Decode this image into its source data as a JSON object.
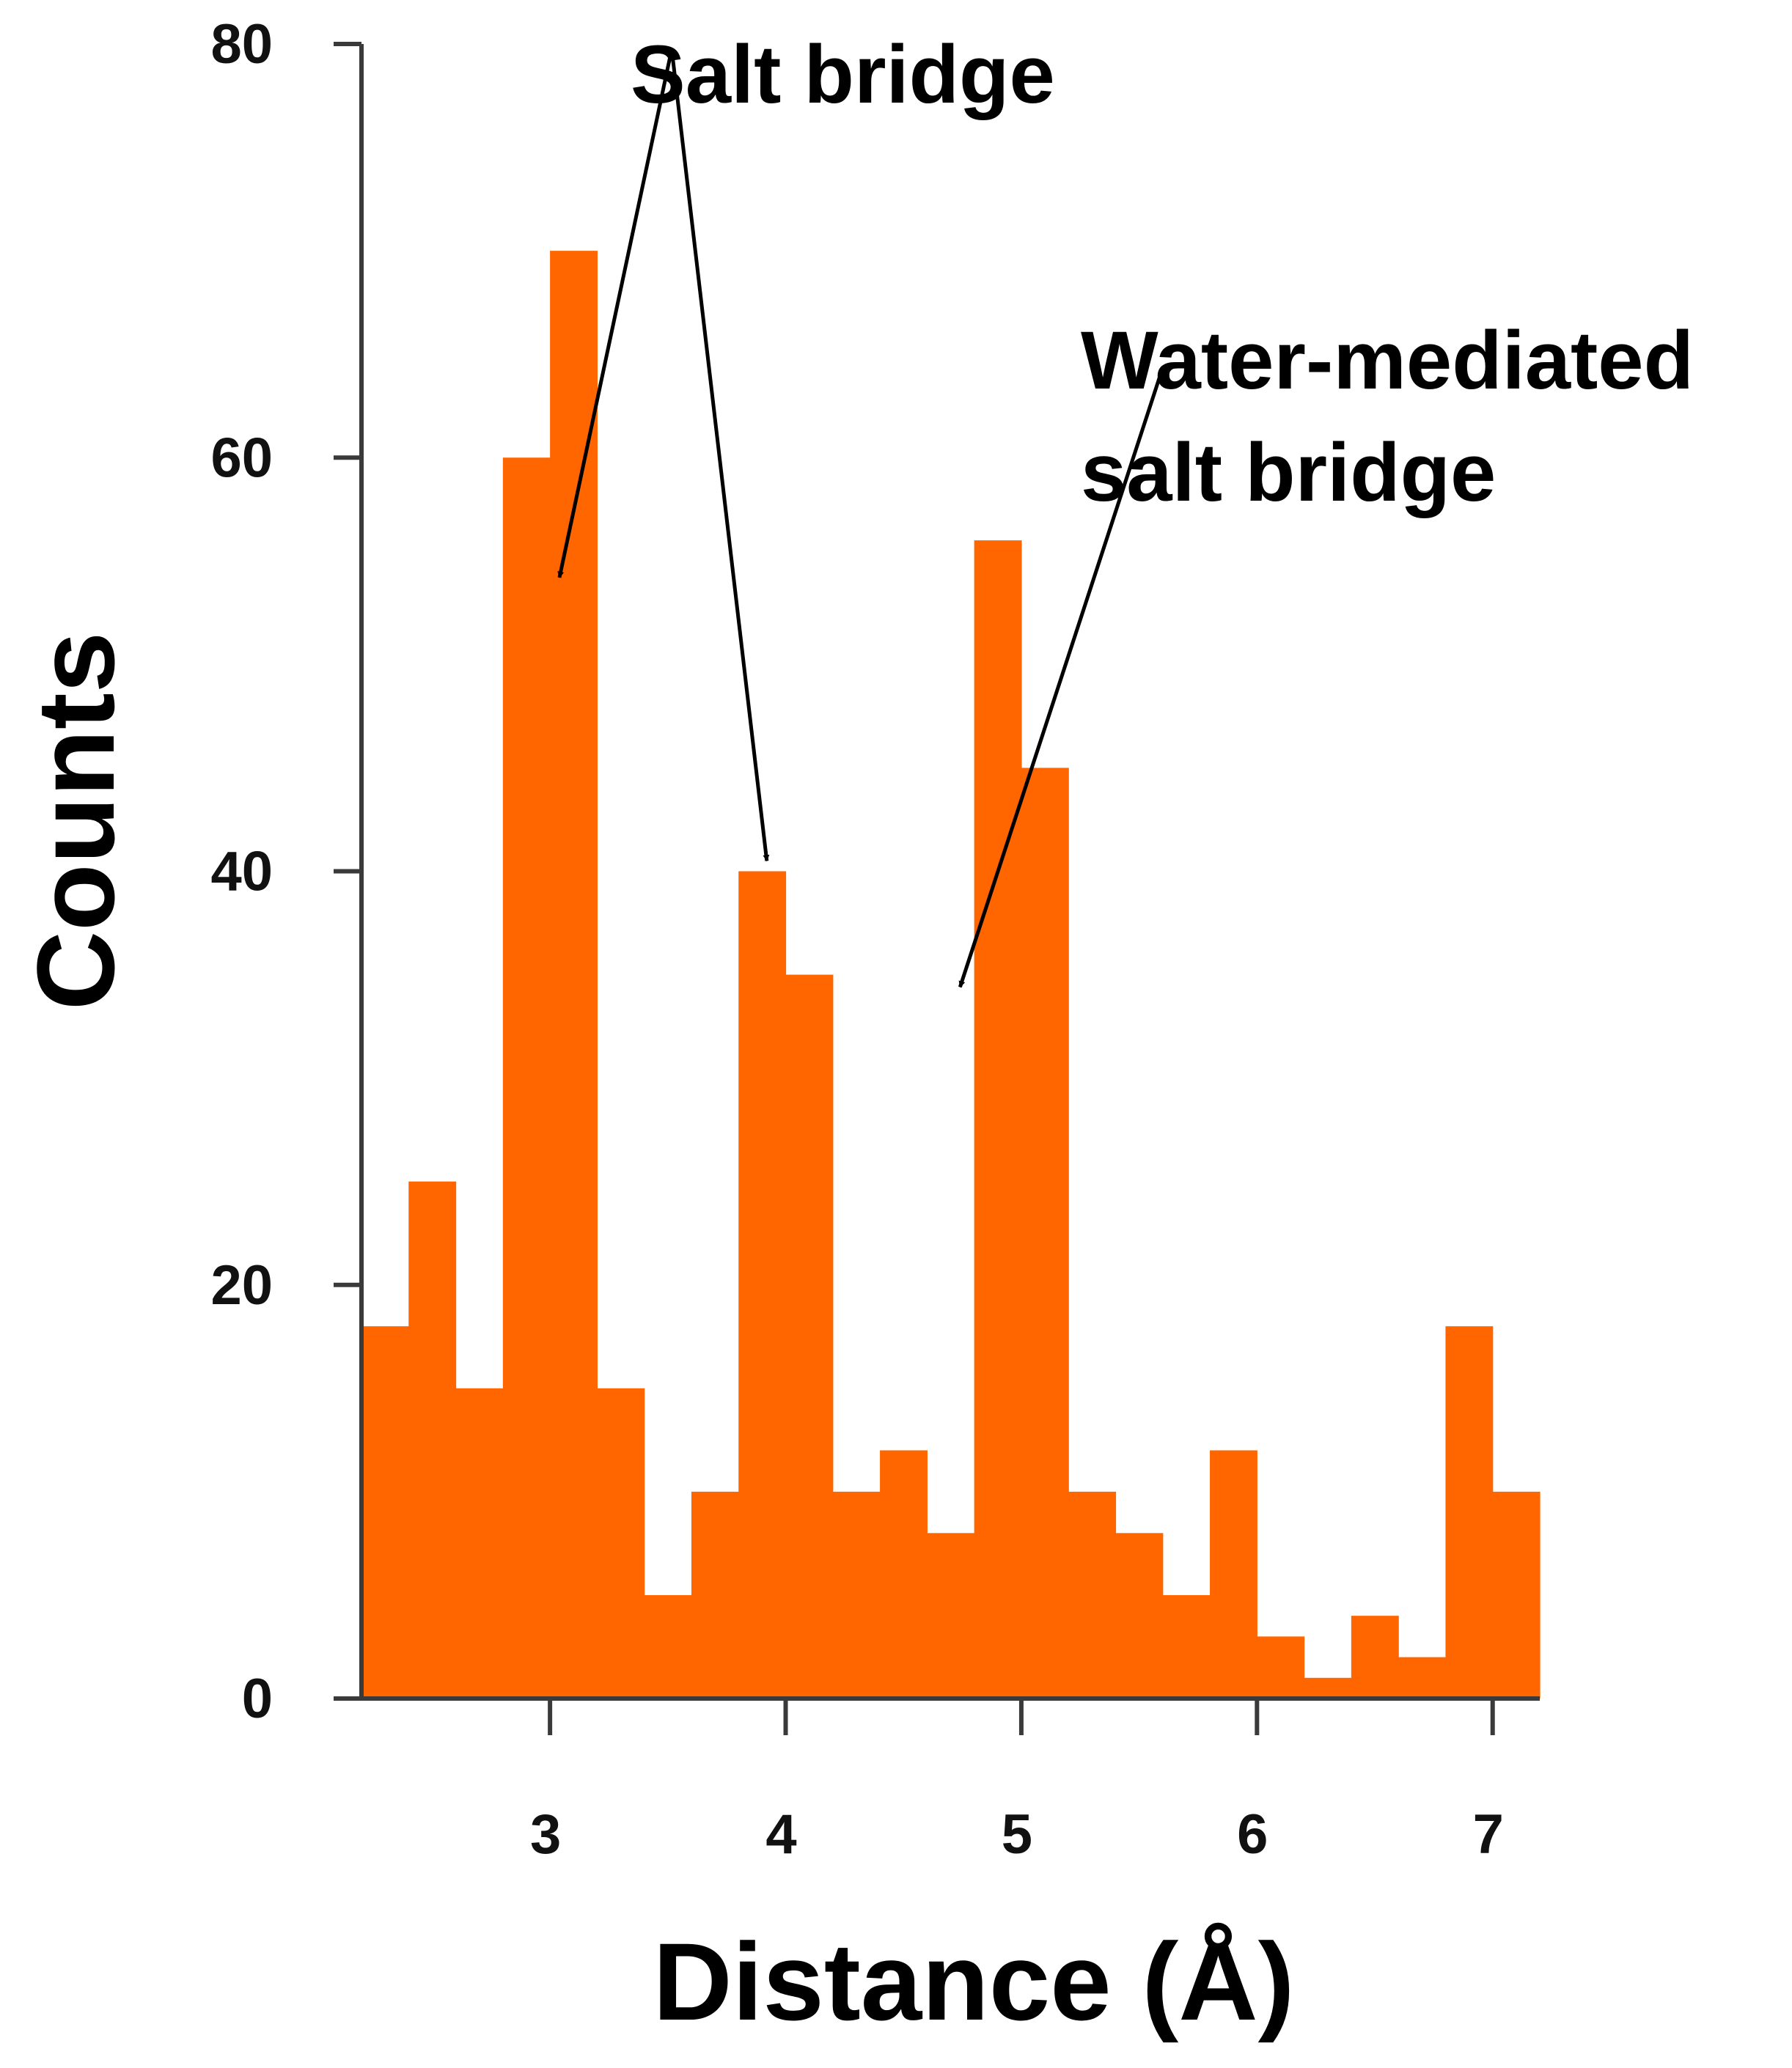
{
  "chart_data": {
    "type": "bar",
    "xlabel": "Distance (Å)",
    "ylabel": "Counts",
    "x_bin_edges": [
      2.2,
      2.4,
      2.6,
      2.8,
      3.0,
      3.2,
      3.4,
      3.6,
      3.8,
      4.0,
      4.2,
      4.4,
      4.6,
      4.8,
      5.0,
      5.2,
      5.4,
      5.6,
      5.8,
      6.0,
      6.2,
      6.4,
      6.6,
      6.8,
      7.0,
      7.2
    ],
    "values": [
      18,
      25,
      15,
      60,
      70,
      15,
      5,
      10,
      40,
      35,
      10,
      12,
      8,
      56,
      45,
      10,
      8,
      5,
      12,
      3,
      1,
      4,
      2,
      18,
      10
    ],
    "xlim": [
      2.2,
      7.2
    ],
    "ylim": [
      0,
      80
    ],
    "xticks": [
      {
        "value": 3,
        "label": "3"
      },
      {
        "value": 4,
        "label": "4"
      },
      {
        "value": 5,
        "label": "5"
      },
      {
        "value": 6,
        "label": "6"
      },
      {
        "value": 7,
        "label": "7"
      }
    ],
    "yticks": [
      {
        "value": 0,
        "label": "0"
      },
      {
        "value": 20,
        "label": "20"
      },
      {
        "value": 40,
        "label": "40"
      },
      {
        "value": 60,
        "label": "60"
      },
      {
        "value": 80,
        "label": "80"
      }
    ],
    "bar_color": "#ff6600",
    "grid": false,
    "annotations": [
      {
        "lines": [
          "Salt bridge"
        ],
        "arrows": [
          {
            "from": [
              3.51,
              79.4
            ],
            "to": [
              3.04,
              54.2
            ]
          },
          {
            "from": [
              3.52,
              79.4
            ],
            "to": [
              3.92,
              40.5
            ]
          }
        ]
      },
      {
        "lines": [
          "Water-mediated",
          "salt bridge"
        ],
        "arrows": [
          {
            "from": [
              5.59,
              64.0
            ],
            "to": [
              4.74,
              34.4
            ]
          }
        ]
      }
    ]
  }
}
